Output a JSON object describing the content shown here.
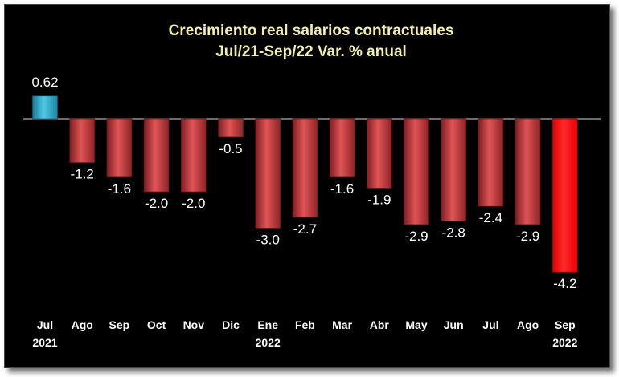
{
  "chart_data": {
    "type": "bar",
    "title": "Crecimiento real salarios contractuales",
    "subtitle": "Jul/21-Sep/22 Var. % anual",
    "categories": [
      "Jul",
      "Ago",
      "Sep",
      "Oct",
      "Nov",
      "Dic",
      "Ene",
      "Feb",
      "Mar",
      "Abr",
      "May",
      "Jun",
      "Jul",
      "Ago",
      "Sep"
    ],
    "year_labels": [
      "2021",
      "",
      "",
      "",
      "",
      "",
      "2022",
      "",
      "",
      "",
      "",
      "",
      "",
      "",
      "2022"
    ],
    "values": [
      0.62,
      -1.2,
      -1.6,
      -2.0,
      -2.0,
      -0.5,
      -3.0,
      -2.7,
      -1.6,
      -1.9,
      -2.9,
      -2.8,
      -2.4,
      -2.9,
      -4.2
    ],
    "value_labels": [
      "0.62",
      "-1.2",
      "-1.6",
      "-2.0",
      "-2.0",
      "-0.5",
      "-3.0",
      "-2.7",
      "-1.6",
      "-1.9",
      "-2.9",
      "-2.8",
      "-2.4",
      "-2.9",
      "-4.2"
    ],
    "ylim": [
      -4.2,
      0.62
    ],
    "grid": false,
    "legend": "none",
    "colors": {
      "positive": "#2aa8c8",
      "negative": "#c4383b",
      "highlight": "#ff0000",
      "background": "#000000",
      "title": "#f2f0a8",
      "text": "#ffffff"
    },
    "highlight_index": 14
  }
}
